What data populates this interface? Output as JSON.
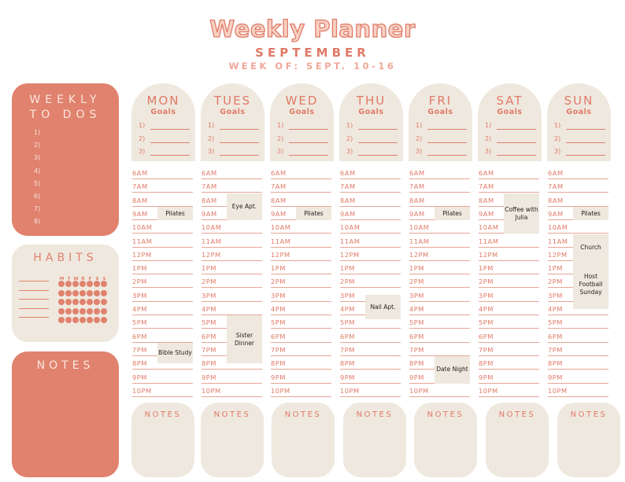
{
  "title": "Weekly Planner",
  "month": "SEPTEMBER",
  "week_of": "WEEK OF: SEPT. 10-16",
  "todos": {
    "heading_line1": "WEEKLY",
    "heading_line2": "TO DOS",
    "items": [
      "1)",
      "2)",
      "3)",
      "4)",
      "5)",
      "6)",
      "7)",
      "8)"
    ]
  },
  "habits": {
    "heading": "HABITS",
    "days": [
      "M",
      "T",
      "W",
      "R",
      "F",
      "S",
      "S"
    ],
    "rows": 5
  },
  "notes_side": {
    "heading": "NOTES"
  },
  "goals_label": "Goals",
  "goal_numbers": [
    "1)",
    "2)",
    "3)"
  ],
  "notes_label": "NOTES",
  "times": [
    "6AM",
    "7AM",
    "8AM",
    "9AM",
    "10AM",
    "11AM",
    "12PM",
    "1PM",
    "2PM",
    "3PM",
    "4PM",
    "5PM",
    "6PM",
    "7PM",
    "8PM",
    "9PM",
    "10PM"
  ],
  "days": [
    {
      "name": "MON",
      "events": [
        {
          "text": "Pilates",
          "start": 3,
          "span": 1
        },
        {
          "text": "Bible Study",
          "start": 13,
          "span": 1.5
        }
      ]
    },
    {
      "name": "TUES",
      "events": [
        {
          "text": "Eye Apt.",
          "start": 2,
          "span": 2
        },
        {
          "text": "Sister Dinner",
          "start": 11,
          "span": 3.5
        }
      ]
    },
    {
      "name": "WED",
      "events": [
        {
          "text": "Pilates",
          "start": 3,
          "span": 1
        }
      ]
    },
    {
      "name": "THU",
      "events": [
        {
          "text": "Nail Apt.",
          "start": 9.5,
          "span": 1.8
        }
      ]
    },
    {
      "name": "FRI",
      "events": [
        {
          "text": "Pilates",
          "start": 3,
          "span": 1
        },
        {
          "text": "Date Night",
          "start": 14,
          "span": 2
        }
      ]
    },
    {
      "name": "SAT",
      "events": [
        {
          "text": "Coffee with Julia",
          "start": 2,
          "span": 3
        }
      ]
    },
    {
      "name": "SUN",
      "events": [
        {
          "text": "Pilates",
          "start": 3,
          "span": 1
        },
        {
          "text": "Church",
          "start": 5,
          "span": 2
        },
        {
          "text": "Host Football Sunday",
          "start": 7,
          "span": 3.5
        }
      ]
    }
  ]
}
